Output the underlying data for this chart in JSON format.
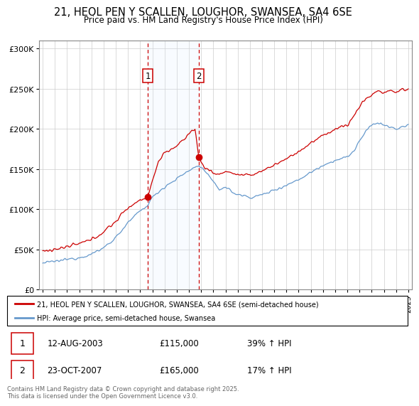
{
  "title": "21, HEOL PEN Y SCALLEN, LOUGHOR, SWANSEA, SA4 6SE",
  "subtitle": "Price paid vs. HM Land Registry's House Price Index (HPI)",
  "red_line_label": "21, HEOL PEN Y SCALLEN, LOUGHOR, SWANSEA, SA4 6SE (semi-detached house)",
  "blue_line_label": "HPI: Average price, semi-detached house, Swansea",
  "transaction1_date": "12-AUG-2003",
  "transaction1_price": 115000,
  "transaction1_hpi": "39% ↑ HPI",
  "transaction2_date": "23-OCT-2007",
  "transaction2_price": 165000,
  "transaction2_hpi": "17% ↑ HPI",
  "footer": "Contains HM Land Registry data © Crown copyright and database right 2025.\nThis data is licensed under the Open Government Licence v3.0.",
  "red_color": "#cc0000",
  "blue_color": "#6699cc",
  "shading_color": "#ddeeff",
  "ylim": [
    0,
    310000
  ],
  "yticks": [
    0,
    50000,
    100000,
    150000,
    200000,
    250000,
    300000
  ],
  "ytick_labels": [
    "£0",
    "£50K",
    "£100K",
    "£150K",
    "£200K",
    "£250K",
    "£300K"
  ],
  "x_start_year": 1995,
  "x_end_year": 2025,
  "transaction1_year": 2003.62,
  "transaction2_year": 2007.81,
  "blue_keypoints": [
    [
      1995.0,
      33000
    ],
    [
      1996.0,
      35000
    ],
    [
      1997.0,
      37500
    ],
    [
      1998.0,
      40000
    ],
    [
      1999.0,
      44000
    ],
    [
      2000.0,
      52000
    ],
    [
      2001.0,
      65000
    ],
    [
      2002.0,
      83000
    ],
    [
      2003.0,
      98000
    ],
    [
      2003.62,
      105000
    ],
    [
      2004.0,
      115000
    ],
    [
      2005.0,
      128000
    ],
    [
      2006.0,
      138000
    ],
    [
      2007.0,
      148000
    ],
    [
      2007.81,
      155000
    ],
    [
      2008.0,
      152000
    ],
    [
      2008.5,
      145000
    ],
    [
      2009.0,
      133000
    ],
    [
      2009.5,
      125000
    ],
    [
      2010.0,
      128000
    ],
    [
      2010.5,
      122000
    ],
    [
      2011.0,
      118000
    ],
    [
      2011.5,
      117000
    ],
    [
      2012.0,
      115000
    ],
    [
      2012.5,
      116000
    ],
    [
      2013.0,
      118000
    ],
    [
      2014.0,
      124000
    ],
    [
      2015.0,
      130000
    ],
    [
      2016.0,
      137000
    ],
    [
      2017.0,
      146000
    ],
    [
      2018.0,
      155000
    ],
    [
      2019.0,
      161000
    ],
    [
      2020.0,
      165000
    ],
    [
      2020.5,
      172000
    ],
    [
      2021.0,
      185000
    ],
    [
      2021.5,
      196000
    ],
    [
      2022.0,
      205000
    ],
    [
      2022.5,
      208000
    ],
    [
      2023.0,
      205000
    ],
    [
      2023.5,
      202000
    ],
    [
      2024.0,
      200000
    ],
    [
      2024.5,
      202000
    ],
    [
      2025.0,
      205000
    ]
  ],
  "red_keypoints": [
    [
      1995.0,
      48000
    ],
    [
      1996.0,
      50000
    ],
    [
      1997.0,
      53000
    ],
    [
      1998.0,
      57000
    ],
    [
      1999.0,
      62000
    ],
    [
      2000.0,
      72000
    ],
    [
      2001.0,
      85000
    ],
    [
      2002.0,
      102000
    ],
    [
      2003.0,
      112000
    ],
    [
      2003.62,
      115000
    ],
    [
      2004.0,
      135000
    ],
    [
      2004.5,
      160000
    ],
    [
      2005.0,
      170000
    ],
    [
      2005.5,
      175000
    ],
    [
      2006.0,
      178000
    ],
    [
      2006.5,
      185000
    ],
    [
      2007.0,
      195000
    ],
    [
      2007.5,
      200000
    ],
    [
      2007.81,
      165000
    ],
    [
      2008.0,
      158000
    ],
    [
      2008.5,
      150000
    ],
    [
      2009.0,
      145000
    ],
    [
      2009.5,
      143000
    ],
    [
      2010.0,
      148000
    ],
    [
      2010.5,
      145000
    ],
    [
      2011.0,
      143000
    ],
    [
      2011.5,
      142000
    ],
    [
      2012.0,
      142000
    ],
    [
      2012.5,
      145000
    ],
    [
      2013.0,
      148000
    ],
    [
      2014.0,
      155000
    ],
    [
      2015.0,
      163000
    ],
    [
      2016.0,
      172000
    ],
    [
      2017.0,
      182000
    ],
    [
      2018.0,
      192000
    ],
    [
      2019.0,
      200000
    ],
    [
      2020.0,
      205000
    ],
    [
      2020.5,
      215000
    ],
    [
      2021.0,
      228000
    ],
    [
      2021.5,
      238000
    ],
    [
      2022.0,
      242000
    ],
    [
      2022.5,
      248000
    ],
    [
      2023.0,
      245000
    ],
    [
      2023.5,
      248000
    ],
    [
      2024.0,
      245000
    ],
    [
      2024.5,
      250000
    ],
    [
      2025.0,
      248000
    ]
  ]
}
